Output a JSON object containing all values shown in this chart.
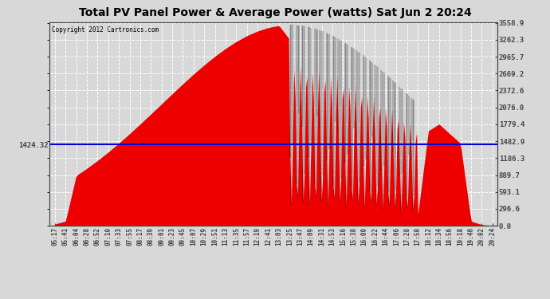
{
  "title": "Total PV Panel Power & Average Power (watts) Sat Jun 2 20:24",
  "copyright": "Copyright 2012 Cartronics.com",
  "avg_power": 1424.32,
  "y_max": 3558.9,
  "y_ticks": [
    0.0,
    296.6,
    593.1,
    889.7,
    1186.3,
    1482.9,
    1779.4,
    2076.0,
    2372.6,
    2669.2,
    2965.7,
    3262.3,
    3558.9
  ],
  "bg_color": "#d8d8d8",
  "fill_color": "#ee0000",
  "line_color": "#0000dd",
  "grid_color": "#ffffff",
  "grid_style": "--",
  "x_labels": [
    "05:17",
    "05:41",
    "06:04",
    "06:28",
    "06:52",
    "07:10",
    "07:33",
    "07:55",
    "08:17",
    "08:39",
    "09:01",
    "09:23",
    "09:45",
    "10:07",
    "10:29",
    "10:51",
    "11:13",
    "11:35",
    "11:57",
    "12:19",
    "12:41",
    "13:03",
    "13:25",
    "13:47",
    "14:09",
    "14:31",
    "14:53",
    "15:16",
    "15:38",
    "16:00",
    "16:22",
    "16:44",
    "17:06",
    "17:28",
    "17:50",
    "18:12",
    "18:34",
    "18:56",
    "19:18",
    "19:40",
    "20:02",
    "20:24"
  ],
  "title_fontsize": 10,
  "tick_fontsize": 6.5,
  "xlabel_fontsize": 5.5
}
